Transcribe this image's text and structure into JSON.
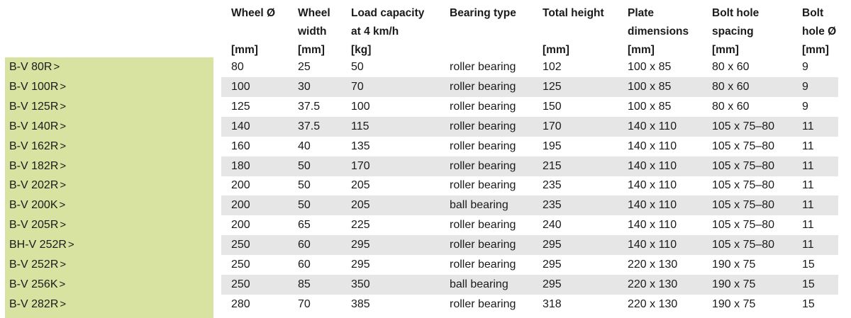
{
  "headers": [
    {
      "key": "wheel_d",
      "lines": [
        "Wheel Ø",
        "",
        "[mm]"
      ]
    },
    {
      "key": "wheel_w",
      "lines": [
        "Wheel",
        "width",
        "[mm]"
      ]
    },
    {
      "key": "load",
      "lines": [
        "Load capacity",
        "at 4 km/h",
        "[kg]"
      ]
    },
    {
      "key": "bearing",
      "lines": [
        "Bearing type",
        "",
        ""
      ]
    },
    {
      "key": "height",
      "lines": [
        "Total height",
        "",
        "[mm]"
      ]
    },
    {
      "key": "plate",
      "lines": [
        "Plate",
        "dimensions",
        "[mm]"
      ]
    },
    {
      "key": "spacing",
      "lines": [
        "Bolt hole",
        "spacing",
        "[mm]"
      ]
    },
    {
      "key": "bolt",
      "lines": [
        "Bolt",
        "hole Ø",
        "[mm]"
      ]
    }
  ],
  "rows": [
    {
      "name": "B-V 80R",
      "arrow": ">",
      "cells": [
        "80",
        "25",
        "50",
        "roller bearing",
        "102",
        "100 x 85",
        "80 x 60",
        "9"
      ]
    },
    {
      "name": "B-V 100R",
      "arrow": ">",
      "cells": [
        "100",
        "30",
        "70",
        "roller bearing",
        "125",
        "100 x 85",
        "80 x 60",
        "9"
      ]
    },
    {
      "name": "B-V 125R",
      "arrow": ">",
      "cells": [
        "125",
        "37.5",
        "100",
        "roller bearing",
        "150",
        "100 x 85",
        "80 x 60",
        "9"
      ]
    },
    {
      "name": "B-V 140R",
      "arrow": ">",
      "cells": [
        "140",
        "37.5",
        "115",
        "roller bearing",
        "170",
        "140 x 110",
        "105 x 75–80",
        "11"
      ]
    },
    {
      "name": "B-V 162R",
      "arrow": ">",
      "cells": [
        "160",
        "40",
        "135",
        "roller bearing",
        "195",
        "140 x 110",
        "105 x 75–80",
        "11"
      ]
    },
    {
      "name": "B-V 182R",
      "arrow": ">",
      "cells": [
        "180",
        "50",
        "170",
        "roller bearing",
        "215",
        "140 x 110",
        "105 x 75–80",
        "11"
      ]
    },
    {
      "name": "B-V 202R",
      "arrow": ">",
      "cells": [
        "200",
        "50",
        "205",
        "roller bearing",
        "235",
        "140 x 110",
        "105 x 75–80",
        "11"
      ]
    },
    {
      "name": "B-V 200K",
      "arrow": ">",
      "cells": [
        "200",
        "50",
        "205",
        "ball bearing",
        "235",
        "140 x 110",
        "105 x 75–80",
        "11"
      ]
    },
    {
      "name": "B-V 205R",
      "arrow": ">",
      "cells": [
        "200",
        "65",
        "225",
        "roller bearing",
        "240",
        "140 x 110",
        "105 x 75–80",
        "11"
      ]
    },
    {
      "name": "BH-V 252R",
      "arrow": ">",
      "cells": [
        "250",
        "60",
        "295",
        "roller bearing",
        "295",
        "140 x 110",
        "105 x 75–80",
        "11"
      ]
    },
    {
      "name": "B-V 252R",
      "arrow": ">",
      "cells": [
        "250",
        "60",
        "295",
        "roller bearing",
        "295",
        "220 x 130",
        "190 x 75",
        "15"
      ]
    },
    {
      "name": "B-V 256K",
      "arrow": ">",
      "cells": [
        "250",
        "85",
        "350",
        "ball bearing",
        "295",
        "220 x 130",
        "190 x 75",
        "15"
      ]
    },
    {
      "name": "B-V 282R",
      "arrow": ">",
      "cells": [
        "280",
        "70",
        "385",
        "roller bearing",
        "318",
        "220 x 130",
        "190 x 75",
        "15"
      ]
    }
  ],
  "colors": {
    "name_panel": "#d8e3a1",
    "stripe": "#e6e6e6",
    "text": "#1a1a1a"
  }
}
